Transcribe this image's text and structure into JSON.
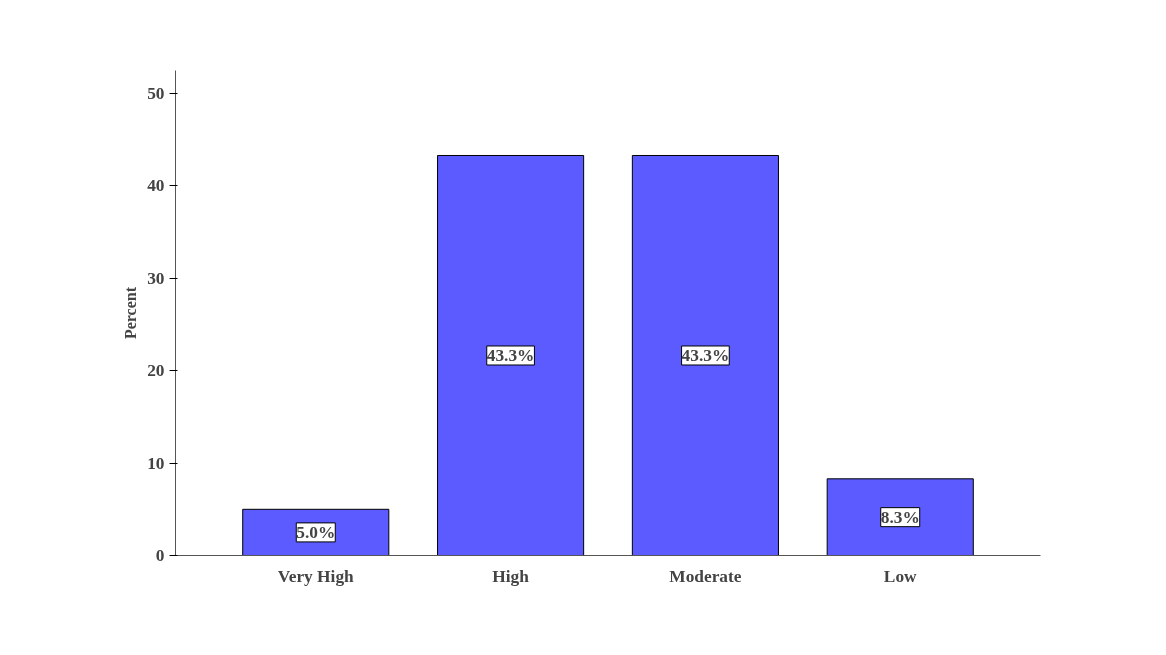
{
  "chart_data": {
    "type": "bar",
    "ylabel": "Percent",
    "categories": [
      "Very High",
      "High",
      "Moderate",
      "Low"
    ],
    "values": [
      5.0,
      43.3,
      43.3,
      8.3
    ],
    "value_labels": [
      "5.0%",
      "43.3%",
      "43.3%",
      "8.3%"
    ],
    "color": "#5b5bff",
    "ylim": [
      0,
      52.5
    ],
    "yticks": [
      0,
      10,
      20,
      30,
      40,
      50
    ],
    "grid": false
  }
}
